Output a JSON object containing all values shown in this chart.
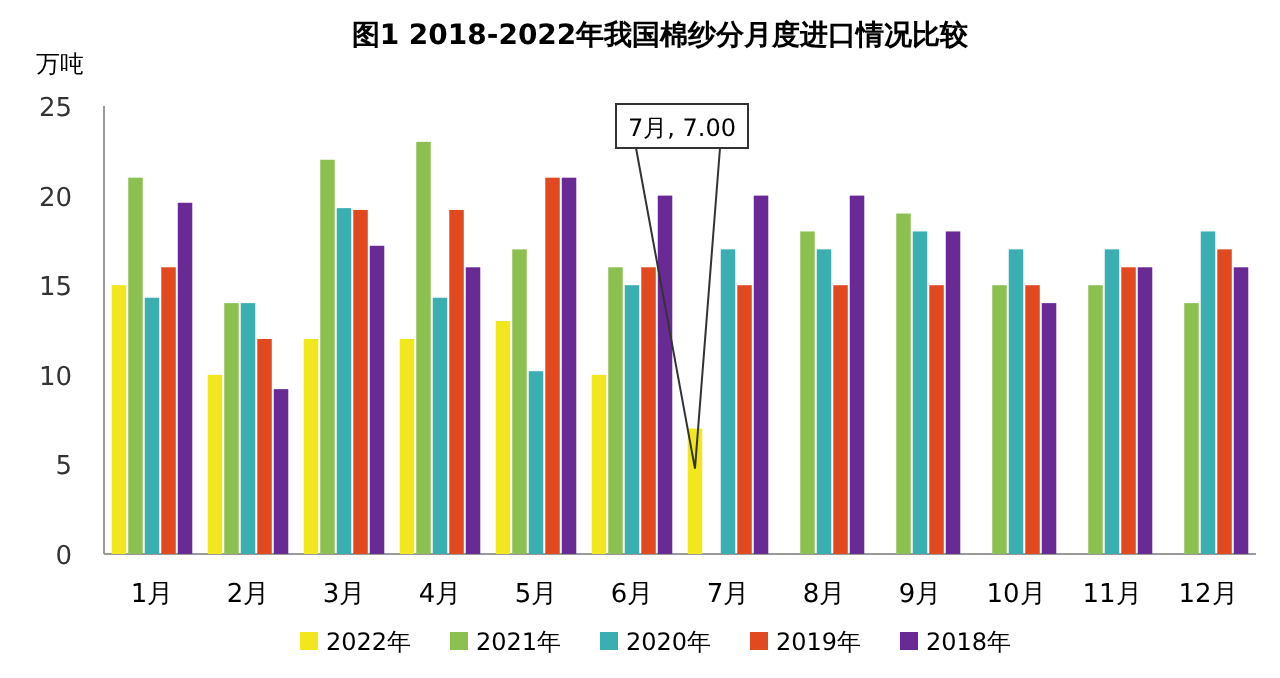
{
  "chart_data": {
    "type": "bar",
    "title": "图1  2018-2022年我国棉纱分月度进口情况比较",
    "ylabel": "万吨",
    "categories": [
      "1月",
      "2月",
      "3月",
      "4月",
      "5月",
      "6月",
      "7月",
      "8月",
      "9月",
      "10月",
      "11月",
      "12月"
    ],
    "series": [
      {
        "name": "2022年",
        "color": "#f2e61c",
        "values": [
          15,
          10,
          12,
          12,
          13,
          10,
          7,
          null,
          null,
          null,
          null,
          null
        ]
      },
      {
        "name": "2021年",
        "color": "#8cc152",
        "values": [
          21,
          14,
          22,
          23,
          17,
          16,
          null,
          18,
          19,
          15,
          15,
          14
        ]
      },
      {
        "name": "2020年",
        "color": "#3aaeb0",
        "values": [
          14.3,
          14,
          19.3,
          14.3,
          10.2,
          15,
          17,
          17,
          18,
          17,
          17,
          18
        ]
      },
      {
        "name": "2019年",
        "color": "#e04a1e",
        "values": [
          16,
          12,
          19.2,
          19.2,
          21,
          16,
          15,
          15,
          15,
          15,
          16,
          17
        ]
      },
      {
        "name": "2018年",
        "color": "#6a2a96",
        "values": [
          19.6,
          9.2,
          17.2,
          16,
          21,
          20,
          20,
          20,
          18,
          14,
          16,
          16
        ]
      }
    ],
    "ylim": [
      0,
      25
    ],
    "yticks": [
      0,
      5,
      10,
      15,
      20,
      25
    ],
    "grid": false,
    "legend": "bottom",
    "annotations": [
      "7月, 7.00"
    ]
  }
}
